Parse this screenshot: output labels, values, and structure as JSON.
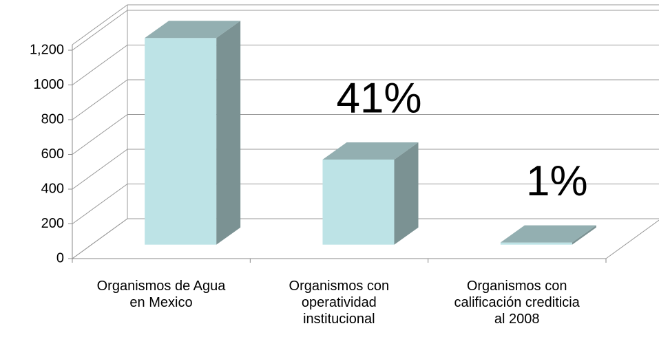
{
  "chart_data": {
    "type": "bar3d",
    "categories": [
      "Organismos de Agua\nen Mexico",
      "Organismos con\noperatividad\ninstitucional",
      "Organismos con\ncalificación crediticia\nal 2008"
    ],
    "values": [
      1190,
      490,
      12
    ],
    "colors": {
      "front": "#bde3e6",
      "side": "#7b9293",
      "top": "#93afb1"
    },
    "annotations": [
      {
        "text": "41%",
        "index": 1
      },
      {
        "text": "1%",
        "index": 2
      }
    ],
    "ylim": [
      0,
      1200
    ],
    "yticks": [
      0,
      200,
      400,
      600,
      800,
      1000,
      {
        "value": 1200,
        "label": "1,200"
      }
    ],
    "grid": true
  }
}
